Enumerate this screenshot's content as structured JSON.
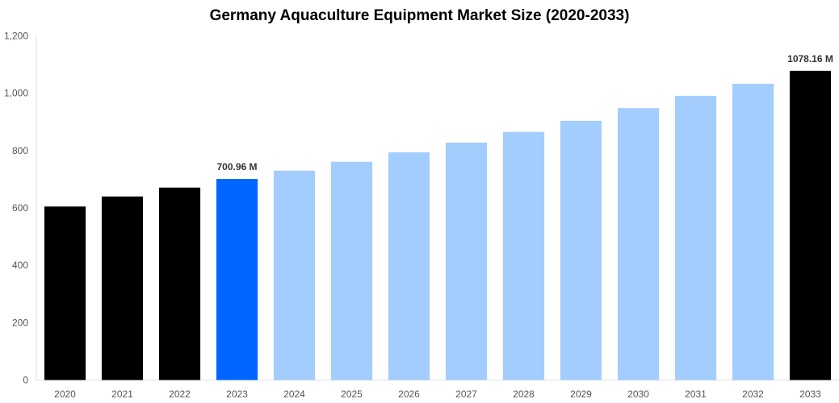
{
  "chart_data": {
    "type": "bar",
    "title": "Germany Aquaculture Equipment Market Size (2020-2033)",
    "xlabel": "",
    "ylabel": "",
    "ylim": [
      0,
      1200
    ],
    "yticks": [
      0,
      200,
      400,
      600,
      800,
      1000,
      1200
    ],
    "ytick_labels": [
      "0",
      "200",
      "400",
      "600",
      "800",
      "1,000",
      "1,200"
    ],
    "grid": false,
    "categories": [
      "2020",
      "2021",
      "2022",
      "2023",
      "2024",
      "2025",
      "2026",
      "2027",
      "2028",
      "2029",
      "2030",
      "2031",
      "2032",
      "2033"
    ],
    "values": [
      605,
      640,
      671,
      700.96,
      730,
      761,
      794,
      828,
      865,
      904,
      948,
      991,
      1033,
      1078.16
    ],
    "bar_colors": [
      "#000000",
      "#000000",
      "#000000",
      "#0066ff",
      "#a3cdfd",
      "#a3cdfd",
      "#a3cdfd",
      "#a3cdfd",
      "#a3cdfd",
      "#a3cdfd",
      "#a3cdfd",
      "#a3cdfd",
      "#a3cdfd",
      "#000000"
    ],
    "data_labels": {
      "2023": "700.96 M",
      "2033": "1078.16 M"
    }
  }
}
